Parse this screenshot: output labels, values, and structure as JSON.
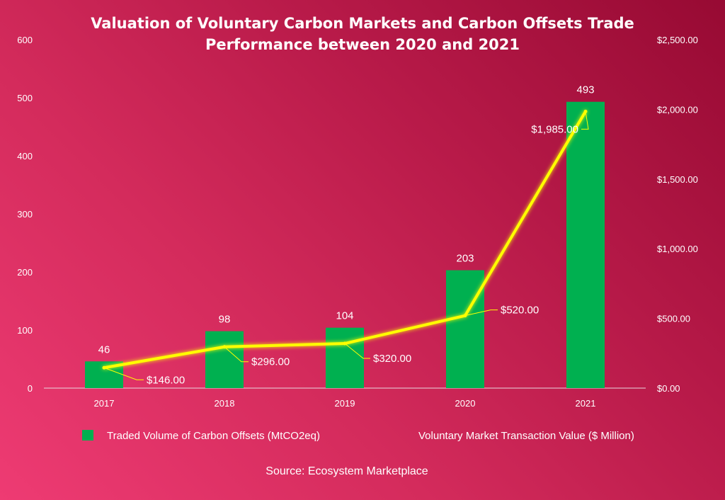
{
  "chart_data": {
    "type": "bar+line",
    "title": "Valuation of Voluntary Carbon Markets and Carbon Offsets Trade",
    "subtitle": "Performance between 2020 and 2021",
    "categories": [
      "2017",
      "2018",
      "2019",
      "2020",
      "2021"
    ],
    "series": [
      {
        "name": "Traded Volume of Carbon Offsets (MtCO2eq)",
        "type": "bar",
        "axis": "left",
        "values": [
          46,
          98,
          104,
          203,
          493
        ],
        "labels": [
          "46",
          "98",
          "104",
          "203",
          "493"
        ],
        "color": "#00b050"
      },
      {
        "name": "Voluntary Market Transaction Value ($ Million)",
        "type": "line",
        "axis": "right",
        "values": [
          146,
          296,
          320,
          520,
          1985
        ],
        "labels": [
          "$146.00",
          "$296.00",
          "$320.00",
          "$520.00",
          "$1,985.00"
        ],
        "color": "#ffff00"
      }
    ],
    "y_left": {
      "min": 0,
      "max": 600,
      "step": 100,
      "tick_labels": [
        "0",
        "100",
        "200",
        "300",
        "400",
        "500",
        "600"
      ]
    },
    "y_right": {
      "min": 0,
      "max": 2500,
      "step": 500,
      "tick_labels": [
        "$0.00",
        "$500.00",
        "$1,000.00",
        "$1,500.00",
        "$2,000.00",
        "$2,500.00"
      ]
    },
    "legend_position": "bottom",
    "grid": false
  },
  "source": "Source: Ecosystem Marketplace"
}
